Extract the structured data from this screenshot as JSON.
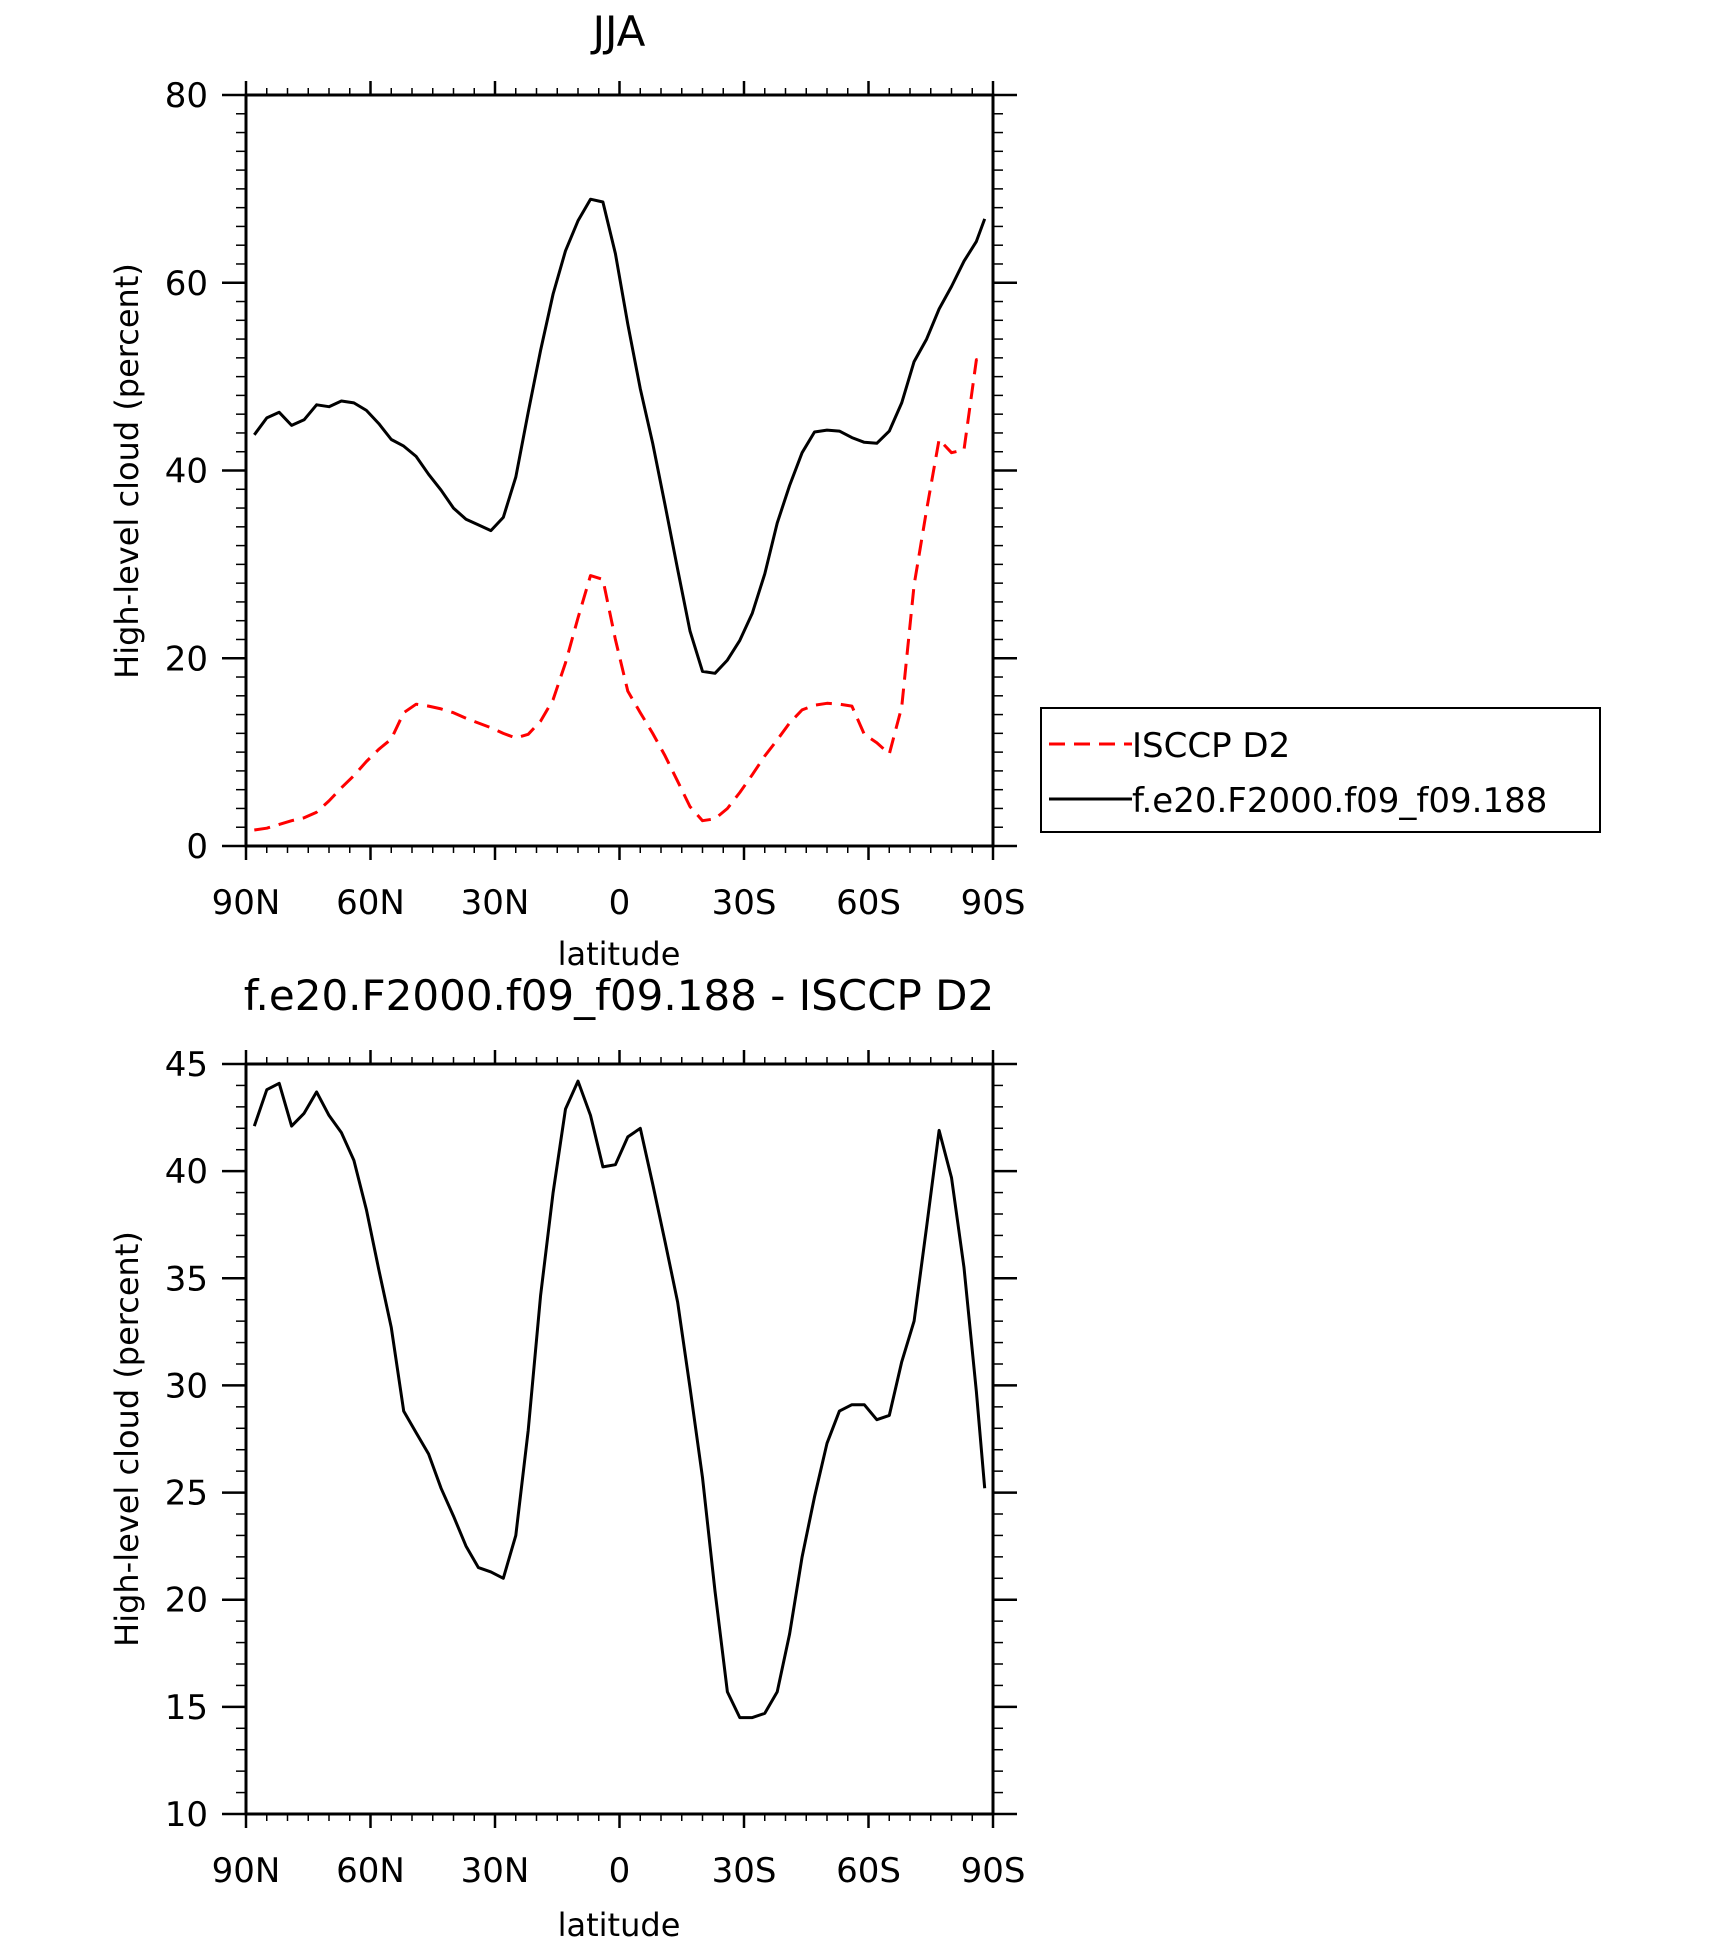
{
  "chart_data": [
    {
      "type": "line",
      "title": "JJA",
      "xlabel": "latitude",
      "ylabel": "High-level cloud (percent)",
      "xlim": [
        90,
        -90
      ],
      "ylim": [
        0,
        80
      ],
      "xticks": [
        90,
        60,
        30,
        0,
        -30,
        -60,
        -90
      ],
      "xtick_labels": [
        "90N",
        "60N",
        "30N",
        "0",
        "30S",
        "60S",
        "90S"
      ],
      "yticks": [
        0,
        20,
        40,
        60,
        80
      ],
      "ytick_labels": [
        "0",
        "20",
        "40",
        "60",
        "80"
      ],
      "grid": false,
      "legend_position": "right",
      "x": [
        88,
        85,
        82,
        79,
        76,
        73,
        70,
        67,
        64,
        61,
        58,
        55,
        52,
        49,
        46,
        43,
        40,
        37,
        34,
        31,
        28,
        25,
        22,
        19,
        16,
        13,
        10,
        7,
        4,
        1,
        -2,
        -5,
        -8,
        -11,
        -14,
        -17,
        -20,
        -23,
        -26,
        -29,
        -32,
        -35,
        -38,
        -41,
        -44,
        -47,
        -50,
        -53,
        -56,
        -59,
        -62,
        -65,
        -68,
        -71,
        -74,
        -77,
        -80,
        -83,
        -86,
        -88
      ],
      "series": [
        {
          "name": "ISCCP D2",
          "color": "#ff0000",
          "dash": "dashed",
          "values": [
            1.7,
            1.9,
            2.3,
            2.7,
            3.0,
            3.6,
            4.8,
            6.2,
            7.5,
            9.0,
            10.3,
            11.4,
            14.2,
            15.1,
            14.9,
            14.6,
            14.2,
            13.6,
            13.1,
            12.6,
            12.0,
            11.5,
            11.9,
            13.3,
            15.6,
            19.5,
            24.3,
            28.8,
            28.4,
            22.0,
            16.5,
            14.2,
            12.0,
            9.6,
            6.9,
            4.2,
            2.7,
            2.9,
            4.0,
            5.7,
            7.6,
            9.6,
            11.3,
            13.1,
            14.5,
            15.0,
            15.2,
            15.1,
            14.9,
            11.9,
            11.0,
            9.8,
            14.8,
            27.8,
            35.8,
            43.3,
            41.9,
            42.2,
            51.8,
            52.0
          ]
        },
        {
          "name": "f.e20.F2000.f09_f09.188",
          "color": "#000000",
          "dash": "solid",
          "values": [
            43.8,
            45.6,
            46.2,
            44.8,
            45.4,
            47.0,
            46.8,
            47.4,
            47.2,
            46.4,
            45.0,
            43.3,
            42.6,
            41.5,
            39.6,
            37.9,
            36.0,
            34.8,
            34.2,
            33.6,
            35.0,
            39.3,
            46.2,
            52.8,
            58.8,
            63.4,
            66.6,
            68.9,
            68.6,
            63.1,
            55.6,
            48.7,
            42.9,
            36.3,
            29.5,
            22.9,
            18.6,
            18.4,
            19.8,
            21.9,
            24.8,
            29.0,
            34.4,
            38.4,
            41.9,
            44.1,
            44.3,
            44.2,
            43.5,
            43.0,
            42.9,
            44.2,
            47.2,
            51.6,
            54.0,
            57.2,
            59.6,
            62.3,
            64.4,
            66.8
          ]
        }
      ]
    },
    {
      "type": "line",
      "title": "f.e20.F2000.f09_f09.188 - ISCCP D2",
      "xlabel": "latitude",
      "ylabel": "High-level cloud (percent)",
      "xlim": [
        90,
        -90
      ],
      "ylim": [
        10,
        45
      ],
      "xticks": [
        90,
        60,
        30,
        0,
        -30,
        -60,
        -90
      ],
      "xtick_labels": [
        "90N",
        "60N",
        "30N",
        "0",
        "30S",
        "60S",
        "90S"
      ],
      "yticks": [
        10,
        15,
        20,
        25,
        30,
        35,
        40,
        45
      ],
      "ytick_labels": [
        "10",
        "15",
        "20",
        "25",
        "30",
        "35",
        "40",
        "45"
      ],
      "grid": false,
      "x": [
        88,
        85,
        82,
        79,
        76,
        73,
        70,
        67,
        64,
        61,
        58,
        55,
        52,
        49,
        46,
        43,
        40,
        37,
        34,
        31,
        28,
        25,
        22,
        19,
        16,
        13,
        10,
        7,
        4,
        1,
        -2,
        -5,
        -8,
        -11,
        -14,
        -17,
        -20,
        -23,
        -26,
        -29,
        -32,
        -35,
        -38,
        -41,
        -44,
        -47,
        -50,
        -53,
        -56,
        -59,
        -62,
        -65,
        -68,
        -71,
        -74,
        -77,
        -80,
        -83,
        -86,
        -88
      ],
      "series": [
        {
          "color": "#000000",
          "values": [
            42.1,
            43.8,
            44.1,
            42.1,
            42.7,
            43.7,
            42.6,
            41.8,
            40.5,
            38.2,
            35.4,
            32.7,
            28.8,
            27.8,
            26.8,
            25.2,
            23.9,
            22.5,
            21.5,
            21.3,
            21.0,
            23.0,
            27.9,
            34.2,
            39.0,
            42.9,
            44.2,
            42.6,
            40.2,
            40.3,
            41.6,
            42.0,
            39.4,
            36.7,
            33.9,
            29.9,
            25.7,
            20.4,
            15.7,
            14.5,
            14.5,
            14.7,
            15.7,
            18.4,
            22.0,
            24.8,
            27.3,
            28.8,
            29.1,
            29.1,
            28.4,
            28.6,
            31.1,
            33.0,
            37.4,
            41.9,
            39.7,
            35.5,
            29.7,
            25.2
          ]
        }
      ]
    }
  ]
}
